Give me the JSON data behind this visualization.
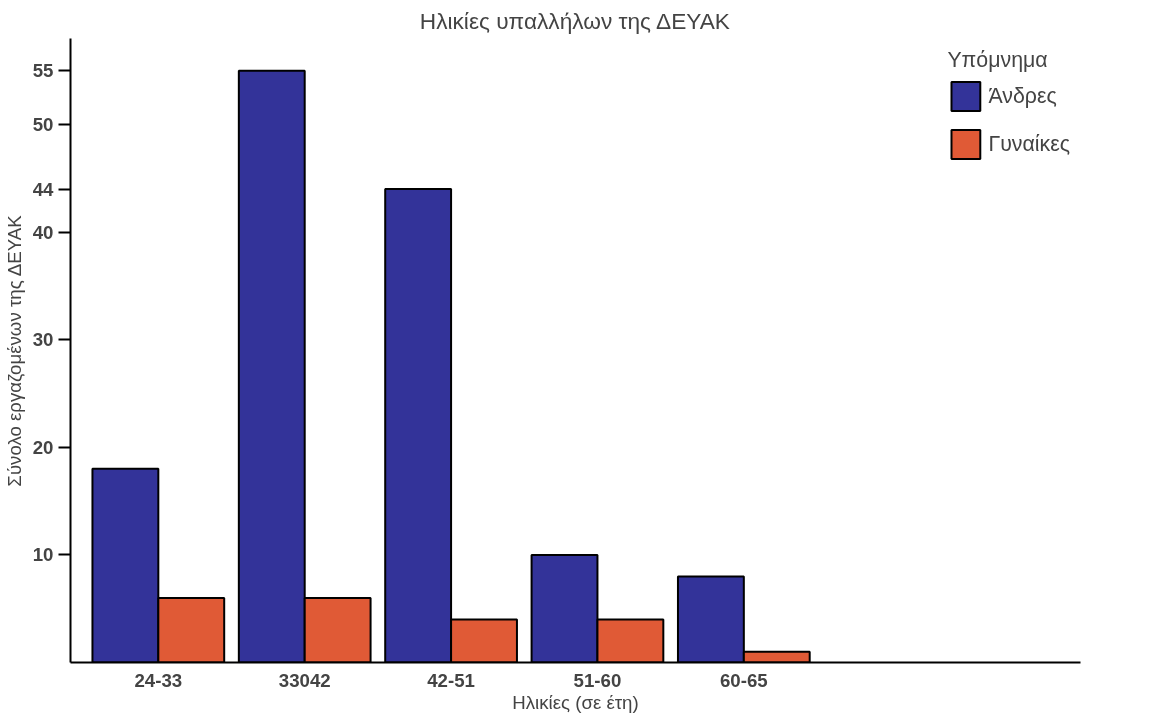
{
  "chart_data": {
    "type": "bar",
    "title": "Ηλικίες υπαλλήλων της ΔΕΥΑΚ",
    "xlabel": "Ηλικίες (σε έτη)",
    "ylabel": "Σύνολο εργαζομένων της ΔΕΥΑΚ",
    "categories": [
      "24-33",
      "33042",
      "42-51",
      "51-60",
      "60-65"
    ],
    "series": [
      {
        "name": "Άνδρες",
        "color": "#333399",
        "values": [
          18,
          55,
          44,
          10,
          8
        ]
      },
      {
        "name": "Γυναίκες",
        "color": "#e05a36",
        "values": [
          6,
          6,
          4,
          4,
          1
        ]
      }
    ],
    "legend_title": "Υπόμνημα",
    "legend": "top right",
    "ylim": [
      0,
      58
    ],
    "yticks": [
      10,
      20,
      30,
      40,
      44,
      50,
      55
    ],
    "grid": false
  }
}
